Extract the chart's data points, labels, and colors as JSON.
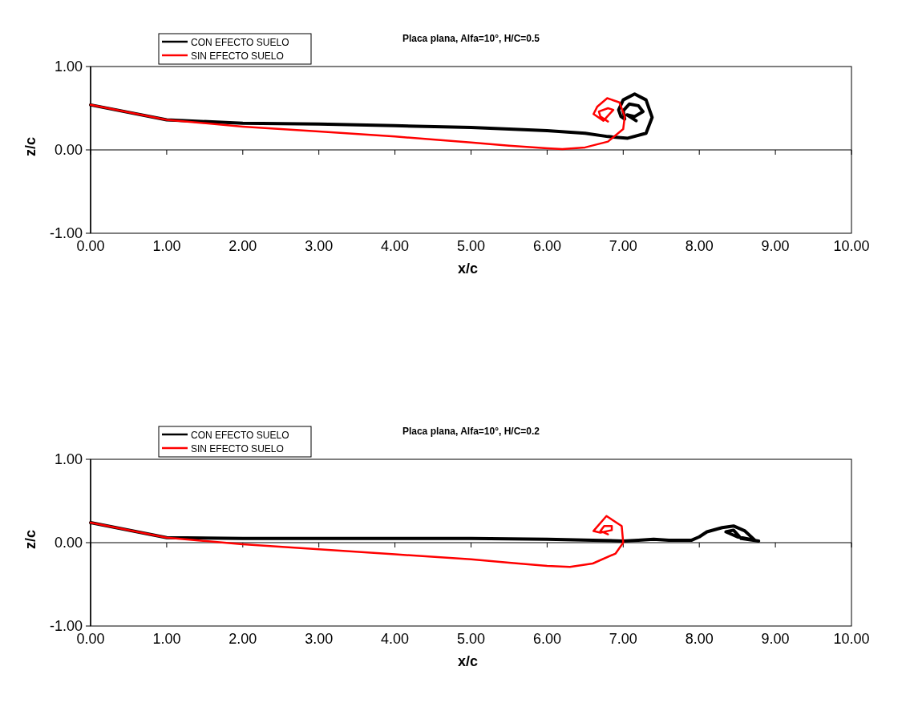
{
  "chart_data": [
    {
      "type": "line",
      "title": "Placa plana, Alfa=10°, H/C=0.5",
      "xlabel": "x/c",
      "ylabel": "z/c",
      "xlim": [
        0,
        10
      ],
      "ylim": [
        -1,
        1
      ],
      "xticks": [
        {
          "value": 0,
          "label": "0.00"
        },
        {
          "value": 1,
          "label": "1.00"
        },
        {
          "value": 2,
          "label": "2.00"
        },
        {
          "value": 3,
          "label": "3.00"
        },
        {
          "value": 4,
          "label": "4.00"
        },
        {
          "value": 5,
          "label": "5.00"
        },
        {
          "value": 6,
          "label": "6.00"
        },
        {
          "value": 7,
          "label": "7.00"
        },
        {
          "value": 8,
          "label": "8.00"
        },
        {
          "value": 9,
          "label": "9.00"
        },
        {
          "value": 10,
          "label": "10.00"
        }
      ],
      "yticks": [
        {
          "value": -1,
          "label": "-1.00"
        },
        {
          "value": 0,
          "label": "0.00"
        },
        {
          "value": 1,
          "label": "1.00"
        }
      ],
      "legend": "top left",
      "marker": "none",
      "line_style": "solid",
      "series": [
        {
          "name": "CON EFECTO SUELO",
          "color": "#000000",
          "x": [
            0,
            1,
            2,
            3,
            4,
            5,
            6,
            6.5,
            6.8,
            7.06,
            7.3,
            7.38,
            7.3,
            7.15,
            7.0,
            6.94,
            6.97,
            7.02,
            7.0,
            7.08,
            7.2,
            7.26,
            7.15,
            7.05,
            7.17
          ],
          "values": [
            0.54,
            0.36,
            0.32,
            0.31,
            0.29,
            0.27,
            0.23,
            0.2,
            0.16,
            0.14,
            0.2,
            0.39,
            0.6,
            0.67,
            0.6,
            0.48,
            0.4,
            0.37,
            0.47,
            0.55,
            0.53,
            0.46,
            0.4,
            0.42,
            0.35
          ]
        },
        {
          "name": "SIN EFECTO SUELO",
          "color": "#ff0000",
          "x": [
            0,
            1,
            2,
            3,
            4,
            5,
            5.5,
            6,
            6.2,
            6.5,
            6.8,
            7,
            7.02,
            6.95,
            6.79,
            6.66,
            6.61,
            6.74,
            6.87,
            6.8,
            6.68,
            6.7,
            6.8
          ],
          "values": [
            0.54,
            0.36,
            0.28,
            0.22,
            0.16,
            0.09,
            0.05,
            0.02,
            0.01,
            0.03,
            0.1,
            0.25,
            0.4,
            0.57,
            0.62,
            0.52,
            0.43,
            0.35,
            0.48,
            0.5,
            0.46,
            0.4,
            0.34
          ]
        }
      ]
    },
    {
      "type": "line",
      "title": "Placa plana, Alfa=10°, H/C=0.2",
      "xlabel": "x/c",
      "ylabel": "z/c",
      "xlim": [
        0,
        10
      ],
      "ylim": [
        -1,
        1
      ],
      "xticks": [
        {
          "value": 0,
          "label": "0.00"
        },
        {
          "value": 1,
          "label": "1.00"
        },
        {
          "value": 2,
          "label": "2.00"
        },
        {
          "value": 3,
          "label": "3.00"
        },
        {
          "value": 4,
          "label": "4.00"
        },
        {
          "value": 5,
          "label": "5.00"
        },
        {
          "value": 6,
          "label": "6.00"
        },
        {
          "value": 7,
          "label": "7.00"
        },
        {
          "value": 8,
          "label": "8.00"
        },
        {
          "value": 9,
          "label": "9.00"
        },
        {
          "value": 10,
          "label": "10.00"
        }
      ],
      "yticks": [
        {
          "value": -1,
          "label": "-1.00"
        },
        {
          "value": 0,
          "label": "0.00"
        },
        {
          "value": 1,
          "label": "1.00"
        }
      ],
      "legend": "top left",
      "marker": "none",
      "line_style": "solid",
      "series": [
        {
          "name": "CON EFECTO SUELO",
          "color": "#000000",
          "x": [
            0,
            1,
            2,
            3,
            4,
            5,
            6,
            6.6,
            7,
            7.2,
            7.4,
            7.6,
            7.9,
            8.0,
            8.1,
            8.3,
            8.45,
            8.6,
            8.73,
            8.5,
            8.35,
            8.45,
            8.55,
            8.78
          ],
          "values": [
            0.24,
            0.06,
            0.05,
            0.05,
            0.05,
            0.05,
            0.04,
            0.03,
            0.02,
            0.03,
            0.04,
            0.03,
            0.03,
            0.07,
            0.13,
            0.18,
            0.2,
            0.14,
            0.03,
            0.07,
            0.13,
            0.15,
            0.05,
            0.02
          ]
        },
        {
          "name": "SIN EFECTO SUELO",
          "color": "#ff0000",
          "x": [
            0,
            1,
            2,
            3,
            4,
            5,
            5.5,
            6,
            6.3,
            6.6,
            6.9,
            7.0,
            6.98,
            6.78,
            6.61,
            6.7,
            6.85,
            6.85,
            6.75,
            6.7,
            6.8
          ],
          "values": [
            0.24,
            0.06,
            -0.02,
            -0.08,
            -0.14,
            -0.2,
            -0.24,
            -0.28,
            -0.29,
            -0.25,
            -0.13,
            0.0,
            0.2,
            0.32,
            0.14,
            0.12,
            0.15,
            0.2,
            0.2,
            0.14,
            0.1
          ]
        }
      ]
    }
  ]
}
